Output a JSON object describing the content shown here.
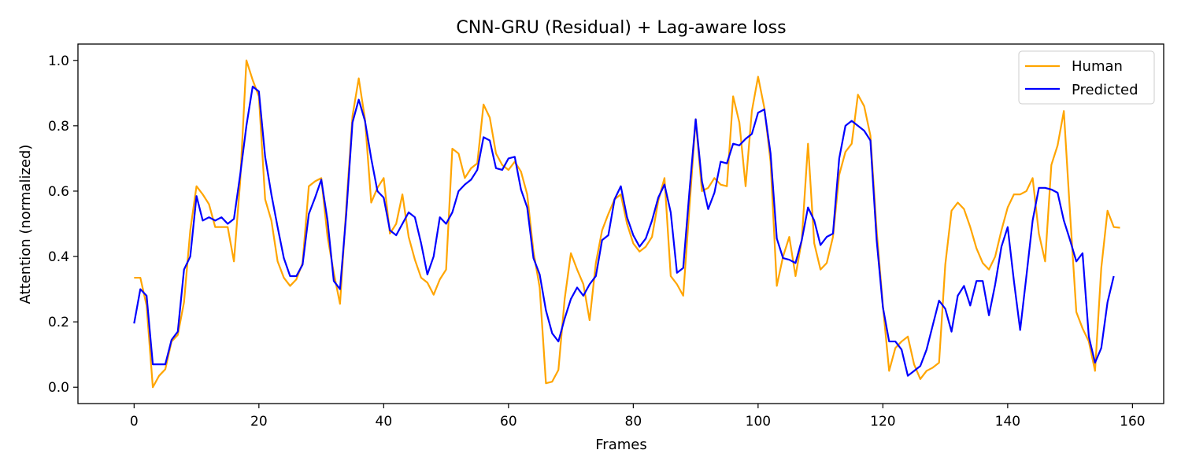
{
  "chart_data": {
    "type": "line",
    "title": "CNN-GRU (Residual) + Lag-aware loss",
    "xlabel": "Frames",
    "ylabel": "Attention (normalized)",
    "xlim": [
      -9,
      165
    ],
    "ylim": [
      -0.05,
      1.05
    ],
    "xticks": [
      0,
      20,
      40,
      60,
      80,
      100,
      120,
      140,
      160
    ],
    "yticks": [
      0.0,
      0.2,
      0.4,
      0.6,
      0.8,
      1.0
    ],
    "grid": false,
    "legend_position": "top-right",
    "series": [
      {
        "name": "Human",
        "color": "#FFA500",
        "values": [
          0.335,
          0.335,
          0.25,
          0.0,
          0.035,
          0.055,
          0.14,
          0.16,
          0.26,
          0.48,
          0.615,
          0.59,
          0.56,
          0.49,
          0.49,
          0.49,
          0.385,
          0.63,
          1.0,
          0.94,
          0.89,
          0.575,
          0.51,
          0.385,
          0.335,
          0.31,
          0.33,
          0.38,
          0.615,
          0.63,
          0.64,
          0.46,
          0.35,
          0.255,
          0.55,
          0.83,
          0.945,
          0.82,
          0.565,
          0.61,
          0.64,
          0.47,
          0.5,
          0.59,
          0.46,
          0.39,
          0.335,
          0.32,
          0.283,
          0.33,
          0.36,
          0.73,
          0.715,
          0.64,
          0.67,
          0.685,
          0.865,
          0.825,
          0.715,
          0.68,
          0.665,
          0.69,
          0.66,
          0.59,
          0.415,
          0.305,
          0.012,
          0.017,
          0.053,
          0.27,
          0.41,
          0.36,
          0.315,
          0.205,
          0.38,
          0.48,
          0.53,
          0.575,
          0.59,
          0.5,
          0.44,
          0.415,
          0.43,
          0.46,
          0.57,
          0.64,
          0.34,
          0.315,
          0.28,
          0.55,
          0.82,
          0.6,
          0.61,
          0.64,
          0.62,
          0.615,
          0.89,
          0.81,
          0.615,
          0.845,
          0.95,
          0.855,
          0.69,
          0.31,
          0.4,
          0.46,
          0.34,
          0.45,
          0.745,
          0.44,
          0.36,
          0.38,
          0.46,
          0.65,
          0.72,
          0.745,
          0.895,
          0.86,
          0.77,
          0.48,
          0.25,
          0.05,
          0.12,
          0.14,
          0.155,
          0.07,
          0.025,
          0.05,
          0.06,
          0.075,
          0.375,
          0.54,
          0.565,
          0.545,
          0.49,
          0.425,
          0.38,
          0.36,
          0.4,
          0.48,
          0.55,
          0.59,
          0.59,
          0.6,
          0.64,
          0.47,
          0.385,
          0.68,
          0.74,
          0.845,
          0.53,
          0.23,
          0.18,
          0.14,
          0.05,
          0.365,
          0.54,
          0.49,
          0.488
        ]
      },
      {
        "name": "Predicted",
        "color": "#0000FF",
        "values": [
          0.195,
          0.3,
          0.28,
          0.07,
          0.07,
          0.07,
          0.145,
          0.17,
          0.36,
          0.4,
          0.585,
          0.51,
          0.52,
          0.51,
          0.52,
          0.5,
          0.515,
          0.65,
          0.8,
          0.92,
          0.905,
          0.705,
          0.59,
          0.49,
          0.395,
          0.34,
          0.34,
          0.375,
          0.53,
          0.58,
          0.635,
          0.51,
          0.325,
          0.3,
          0.53,
          0.81,
          0.88,
          0.815,
          0.7,
          0.6,
          0.58,
          0.48,
          0.465,
          0.5,
          0.535,
          0.52,
          0.44,
          0.345,
          0.4,
          0.52,
          0.5,
          0.535,
          0.6,
          0.62,
          0.635,
          0.665,
          0.765,
          0.755,
          0.67,
          0.665,
          0.7,
          0.705,
          0.605,
          0.55,
          0.395,
          0.345,
          0.235,
          0.165,
          0.14,
          0.21,
          0.27,
          0.305,
          0.28,
          0.315,
          0.34,
          0.45,
          0.465,
          0.575,
          0.615,
          0.52,
          0.465,
          0.43,
          0.455,
          0.51,
          0.58,
          0.62,
          0.535,
          0.35,
          0.365,
          0.6,
          0.82,
          0.63,
          0.545,
          0.595,
          0.69,
          0.685,
          0.745,
          0.74,
          0.76,
          0.775,
          0.84,
          0.85,
          0.715,
          0.455,
          0.395,
          0.39,
          0.38,
          0.45,
          0.55,
          0.51,
          0.435,
          0.46,
          0.47,
          0.7,
          0.8,
          0.815,
          0.8,
          0.785,
          0.755,
          0.45,
          0.245,
          0.14,
          0.14,
          0.115,
          0.035,
          0.05,
          0.065,
          0.115,
          0.19,
          0.265,
          0.24,
          0.17,
          0.28,
          0.31,
          0.25,
          0.325,
          0.325,
          0.22,
          0.315,
          0.43,
          0.49,
          0.325,
          0.175,
          0.34,
          0.51,
          0.61,
          0.61,
          0.605,
          0.595,
          0.51,
          0.45,
          0.385,
          0.41,
          0.155,
          0.075,
          0.12,
          0.26,
          0.34
        ]
      }
    ]
  }
}
